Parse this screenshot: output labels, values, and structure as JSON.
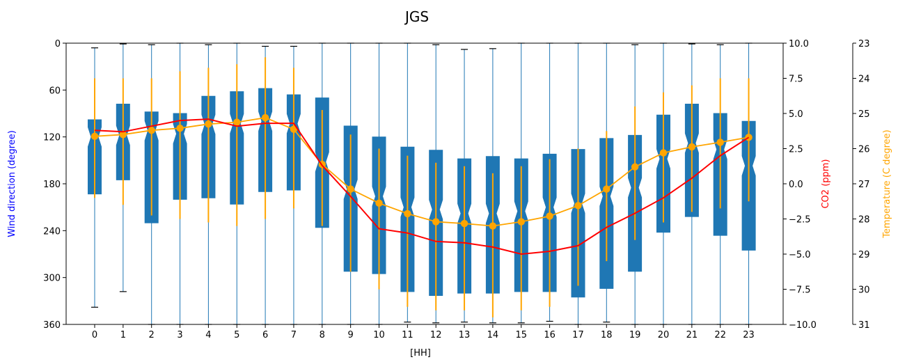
{
  "chart_data": {
    "type": "box",
    "title": "JGS",
    "xlabel": "[HH]",
    "categories": [
      "0",
      "1",
      "2",
      "3",
      "4",
      "5",
      "6",
      "7",
      "8",
      "9",
      "10",
      "11",
      "12",
      "13",
      "14",
      "15",
      "16",
      "17",
      "18",
      "19",
      "20",
      "21",
      "22",
      "23"
    ],
    "axes": {
      "wind": {
        "label": "Wind direction (degree)",
        "color": "#0000ff",
        "range": [
          0,
          360
        ],
        "inverted": true,
        "ticks": [
          "0",
          "60",
          "120",
          "180",
          "240",
          "300",
          "360"
        ]
      },
      "co2": {
        "label": "CO2 (ppm)",
        "color": "#ff0000",
        "range": [
          -10.0,
          10.0
        ],
        "ticks": [
          "10.0",
          "7.5",
          "5.0",
          "2.5",
          "0.0",
          "−2.5",
          "−5.0",
          "−7.5",
          "−10.0"
        ]
      },
      "temperature": {
        "label": "Temperature (C degree)",
        "color": "#ffa500",
        "range": [
          23,
          31
        ],
        "inverted": true,
        "ticks": [
          "23",
          "24",
          "25",
          "26",
          "27",
          "28",
          "29",
          "30",
          "31"
        ]
      }
    },
    "colors": {
      "box": "#1f77b4",
      "co2_line": "#ff0000",
      "temperature": "#ffa500"
    },
    "wind_boxes": [
      {
        "hour": 0,
        "q1": 98,
        "median": 120,
        "q3": 193,
        "wlo": 6,
        "whi": 338
      },
      {
        "hour": 1,
        "q1": 78,
        "median": 118,
        "q3": 175,
        "wlo": 1,
        "whi": 318
      },
      {
        "hour": 2,
        "q1": 88,
        "median": 112,
        "q3": 230,
        "wlo": 2,
        "whi": 360
      },
      {
        "hour": 3,
        "q1": 90,
        "median": 116,
        "q3": 200,
        "wlo": 0,
        "whi": 360
      },
      {
        "hour": 4,
        "q1": 68,
        "median": 104,
        "q3": 198,
        "wlo": 2,
        "whi": 360
      },
      {
        "hour": 5,
        "q1": 62,
        "median": 103,
        "q3": 206,
        "wlo": 0,
        "whi": 360
      },
      {
        "hour": 6,
        "q1": 58,
        "median": 100,
        "q3": 190,
        "wlo": 4,
        "whi": 360
      },
      {
        "hour": 7,
        "q1": 66,
        "median": 103,
        "q3": 188,
        "wlo": 4,
        "whi": 360
      },
      {
        "hour": 8,
        "q1": 70,
        "median": 152,
        "q3": 236,
        "wlo": 0,
        "whi": 360
      },
      {
        "hour": 9,
        "q1": 106,
        "median": 187,
        "q3": 292,
        "wlo": 0,
        "whi": 360
      },
      {
        "hour": 10,
        "q1": 120,
        "median": 196,
        "q3": 295,
        "wlo": 0,
        "whi": 360
      },
      {
        "hour": 11,
        "q1": 133,
        "median": 210,
        "q3": 318,
        "wlo": 0,
        "whi": 357
      },
      {
        "hour": 12,
        "q1": 137,
        "median": 213,
        "q3": 323,
        "wlo": 2,
        "whi": 358
      },
      {
        "hour": 13,
        "q1": 148,
        "median": 218,
        "q3": 320,
        "wlo": 8,
        "whi": 357
      },
      {
        "hour": 14,
        "q1": 145,
        "median": 218,
        "q3": 320,
        "wlo": 7,
        "whi": 358
      },
      {
        "hour": 15,
        "q1": 148,
        "median": 215,
        "q3": 318,
        "wlo": 0,
        "whi": 358
      },
      {
        "hour": 16,
        "q1": 142,
        "median": 210,
        "q3": 318,
        "wlo": 0,
        "whi": 356
      },
      {
        "hour": 17,
        "q1": 136,
        "median": 205,
        "q3": 325,
        "wlo": 0,
        "whi": 360
      },
      {
        "hour": 18,
        "q1": 122,
        "median": 196,
        "q3": 314,
        "wlo": 0,
        "whi": 357
      },
      {
        "hour": 19,
        "q1": 118,
        "median": 185,
        "q3": 292,
        "wlo": 2,
        "whi": 360
      },
      {
        "hour": 20,
        "q1": 92,
        "median": 148,
        "q3": 242,
        "wlo": 0,
        "whi": 360
      },
      {
        "hour": 21,
        "q1": 78,
        "median": 128,
        "q3": 222,
        "wlo": 1,
        "whi": 360
      },
      {
        "hour": 22,
        "q1": 90,
        "median": 136,
        "q3": 246,
        "wlo": 2,
        "whi": 360
      },
      {
        "hour": 23,
        "q1": 100,
        "median": 157,
        "q3": 265,
        "wlo": 0,
        "whi": 360
      }
    ],
    "co2_line": [
      3.8,
      3.7,
      4.1,
      4.5,
      4.6,
      4.1,
      4.3,
      4.3,
      1.3,
      -0.9,
      -3.2,
      -3.5,
      -4.1,
      -4.2,
      -4.5,
      -5.0,
      -4.8,
      -4.4,
      -3.1,
      -2.1,
      -1.0,
      0.4,
      2.0,
      3.3
    ],
    "temperature_line": [
      25.65,
      25.6,
      25.48,
      25.42,
      25.3,
      25.25,
      25.12,
      25.45,
      26.45,
      27.15,
      27.55,
      27.85,
      28.08,
      28.13,
      28.2,
      28.08,
      27.92,
      27.62,
      27.15,
      26.52,
      26.12,
      25.95,
      25.82,
      25.68
    ],
    "temperature_error": [
      [
        24.0,
        27.4
      ],
      [
        24.0,
        27.6
      ],
      [
        24.0,
        27.9
      ],
      [
        23.8,
        28.0
      ],
      [
        23.7,
        28.1
      ],
      [
        23.6,
        28.2
      ],
      [
        23.4,
        28.0
      ],
      [
        23.7,
        27.7
      ],
      [
        24.9,
        28.2
      ],
      [
        25.6,
        29.5
      ],
      [
        26.0,
        30.0
      ],
      [
        26.2,
        30.5
      ],
      [
        26.4,
        30.6
      ],
      [
        26.5,
        30.6
      ],
      [
        26.7,
        30.8
      ],
      [
        26.5,
        30.6
      ],
      [
        26.3,
        30.5
      ],
      [
        26.0,
        29.9
      ],
      [
        25.5,
        29.2
      ],
      [
        24.8,
        28.6
      ],
      [
        24.4,
        28.1
      ],
      [
        24.2,
        27.8
      ],
      [
        24.0,
        27.7
      ],
      [
        24.0,
        27.5
      ]
    ]
  }
}
